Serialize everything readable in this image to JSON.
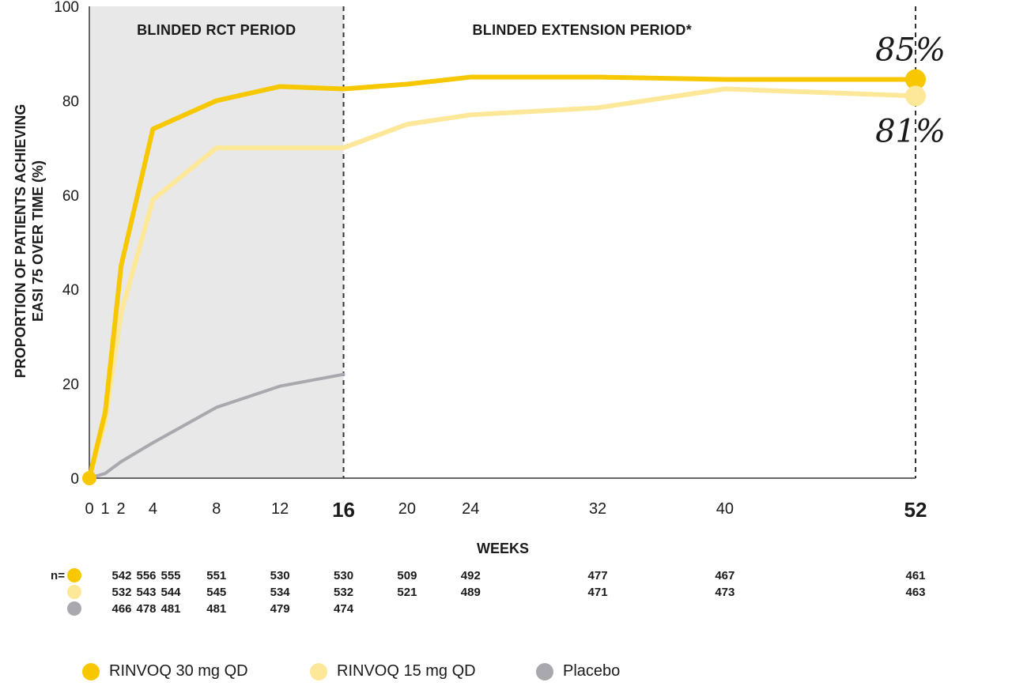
{
  "chart_data": {
    "type": "line",
    "ylabel_lines": [
      "PROPORTION OF PATIENTS ACHIEVING",
      "EASI 75 OVER TIME (%)"
    ],
    "xlabel": "WEEKS",
    "ylim": [
      0,
      100
    ],
    "yticks": [
      0,
      20,
      40,
      60,
      80,
      100
    ],
    "xticks": [
      0,
      1,
      2,
      4,
      8,
      12,
      16,
      20,
      24,
      32,
      40,
      52
    ],
    "xticks_bold": [
      16,
      52
    ],
    "periods": [
      {
        "label": "BLINDED RCT PERIOD",
        "from": 0,
        "to": 16,
        "shaded": true
      },
      {
        "label": "BLINDED EXTENSION PERIOD*",
        "from": 16,
        "to": 52,
        "shaded": false
      }
    ],
    "dashed_lines_at": [
      16,
      52
    ],
    "series": [
      {
        "name": "RINVOQ 30 mg QD",
        "color": "#f7c800",
        "x": [
          0,
          1,
          2,
          4,
          8,
          12,
          16,
          20,
          24,
          32,
          40,
          52
        ],
        "y": [
          0,
          14,
          45,
          74,
          80,
          83,
          82.5,
          83.5,
          85,
          85,
          84.5,
          84.5
        ],
        "end_label": "85%"
      },
      {
        "name": "RINVOQ 15 mg QD",
        "color": "#fde798",
        "x": [
          0,
          1,
          2,
          4,
          8,
          12,
          16,
          20,
          24,
          32,
          40,
          52
        ],
        "y": [
          0,
          12,
          35,
          59,
          70,
          70,
          70,
          75,
          77,
          78.5,
          82.5,
          81
        ],
        "end_label": "81%"
      },
      {
        "name": "Placebo",
        "color": "#a8a8ae",
        "x": [
          0,
          1,
          2,
          4,
          8,
          12,
          16
        ],
        "y": [
          0,
          1,
          3.5,
          7.5,
          15,
          19.5,
          22
        ]
      }
    ],
    "n_table": {
      "prefix": "n=",
      "rows": [
        {
          "color": "#f7c800",
          "values": [
            {
              "week": 0,
              "text": "542"
            },
            {
              "week": 1,
              "text": "556"
            },
            {
              "week": 2,
              "text": "555"
            },
            {
              "week": 8,
              "text": "551"
            },
            {
              "week": 12,
              "text": "530"
            },
            {
              "week": 16,
              "text": "530"
            },
            {
              "week": 20,
              "text": "509"
            },
            {
              "week": 24,
              "text": "492"
            },
            {
              "week": 32,
              "text": "477"
            },
            {
              "week": 40,
              "text": "467"
            },
            {
              "week": 52,
              "text": "461"
            }
          ]
        },
        {
          "color": "#fde798",
          "values": [
            {
              "week": 0,
              "text": "532"
            },
            {
              "week": 1,
              "text": "543"
            },
            {
              "week": 2,
              "text": "544"
            },
            {
              "week": 8,
              "text": "545"
            },
            {
              "week": 12,
              "text": "534"
            },
            {
              "week": 16,
              "text": "532"
            },
            {
              "week": 20,
              "text": "521"
            },
            {
              "week": 24,
              "text": "489"
            },
            {
              "week": 32,
              "text": "471"
            },
            {
              "week": 40,
              "text": "473"
            },
            {
              "week": 52,
              "text": "463"
            }
          ]
        },
        {
          "color": "#a8a8ae",
          "values": [
            {
              "week": 0,
              "text": "466"
            },
            {
              "week": 1,
              "text": "478"
            },
            {
              "week": 2,
              "text": "481"
            },
            {
              "week": 8,
              "text": "481"
            },
            {
              "week": 12,
              "text": "479"
            },
            {
              "week": 16,
              "text": "474"
            }
          ]
        }
      ]
    }
  },
  "legend": [
    {
      "label": "RINVOQ 30 mg QD",
      "color": "#f7c800"
    },
    {
      "label": "RINVOQ 15 mg QD",
      "color": "#fde798"
    },
    {
      "label": "Placebo",
      "color": "#a8a8ae"
    }
  ],
  "colors": {
    "shade": "#e8e8e8",
    "axis": "#666666",
    "text": "#1a1a1a"
  }
}
